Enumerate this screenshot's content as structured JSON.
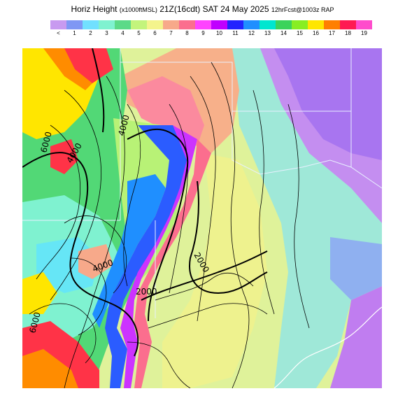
{
  "header": {
    "title_main": "Horiz Height",
    "title_units": "(x1000ftMSL)",
    "title_time": "21Z(16cdt) SAT 24 May 2025",
    "title_model": "12hrFcst@1003z RAP"
  },
  "legend": {
    "labels": [
      "<",
      "1",
      "2",
      "3",
      "4",
      "5",
      "6",
      "7",
      "8",
      "9",
      "10",
      "11",
      "12",
      "13",
      "14",
      "15",
      "16",
      "17",
      "18",
      "19"
    ],
    "colors": [
      "#c89af0",
      "#7f97f4",
      "#71e0ff",
      "#7ff2d0",
      "#5cda88",
      "#c3f47c",
      "#f4f48c",
      "#f7a98a",
      "#fb6e8e",
      "#ff44ff",
      "#c000ff",
      "#2222ff",
      "#1f8fff",
      "#00e6d0",
      "#3bd35b",
      "#88ee22",
      "#ffe600",
      "#ff7f00",
      "#ff1a52",
      "#ff4ccc"
    ]
  },
  "contour_labels": [
    "6000",
    "4000",
    "4000",
    "2000",
    "2000",
    "4000",
    "6000"
  ],
  "map_colors": {
    "purple": "#c07df0",
    "lavender": "#c8a0ee",
    "periwinkle": "#8f90f0",
    "cyan": "#66e6f6",
    "aqua": "#7ff2d0",
    "green": "#52d876",
    "lime": "#b8f276",
    "lightyellow": "#e6f492",
    "yellow": "#f4f48c",
    "salmon": "#f7a98a",
    "pink": "#fb6e8e",
    "red": "#ff3347",
    "orange": "#ff8c00",
    "gold": "#ffd700",
    "blue": "#2b5cff",
    "darkblue": "#1a1aff",
    "magenta": "#cc33ff"
  }
}
